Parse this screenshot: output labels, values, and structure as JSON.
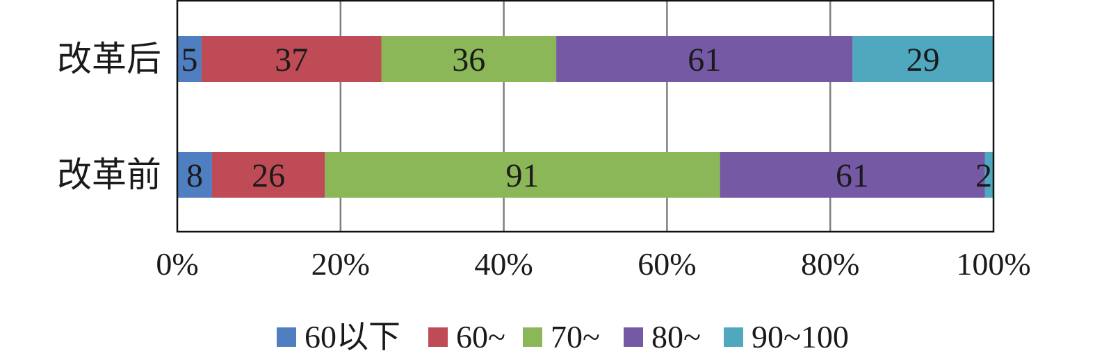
{
  "chart_data": {
    "type": "bar",
    "orientation": "horizontal",
    "stacked": "percent",
    "categories": [
      "改革后",
      "改革前"
    ],
    "series": [
      {
        "name": "60以下",
        "color": "#4f7fc0",
        "values": [
          5,
          8
        ]
      },
      {
        "name": "60~",
        "color": "#be4b55",
        "values": [
          37,
          26
        ]
      },
      {
        "name": "70~",
        "color": "#8cb758",
        "values": [
          36,
          91
        ]
      },
      {
        "name": "80~",
        "color": "#7559a4",
        "values": [
          61,
          61
        ]
      },
      {
        "name": "90~100",
        "color": "#4fa8be",
        "values": [
          29,
          2
        ]
      }
    ],
    "x_ticks": [
      "0%",
      "20%",
      "40%",
      "60%",
      "80%",
      "100%"
    ],
    "xlim": [
      0,
      100
    ],
    "grid": "vertical",
    "legend": "bottom"
  }
}
